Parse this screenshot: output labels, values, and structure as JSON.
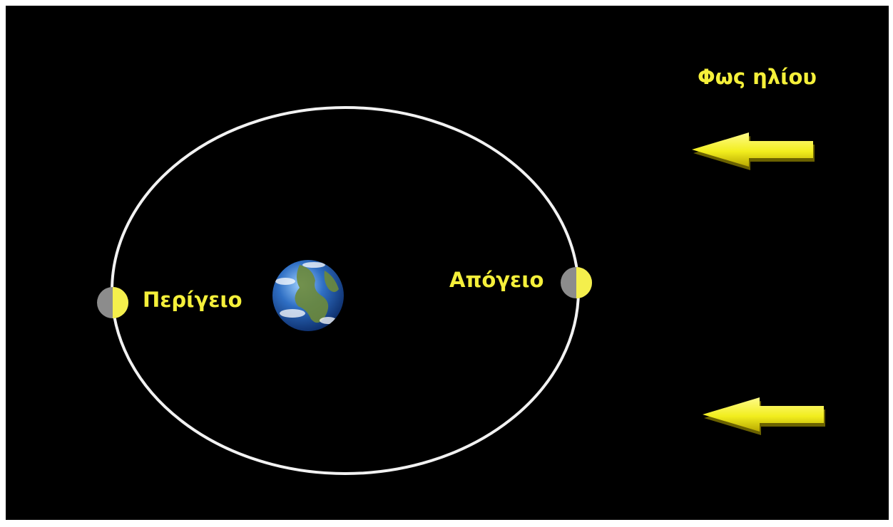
{
  "labels": {
    "sunlight": "Φως ηλίου",
    "perigee": "Περίγειο",
    "apogee": "Απόγειο"
  }
}
